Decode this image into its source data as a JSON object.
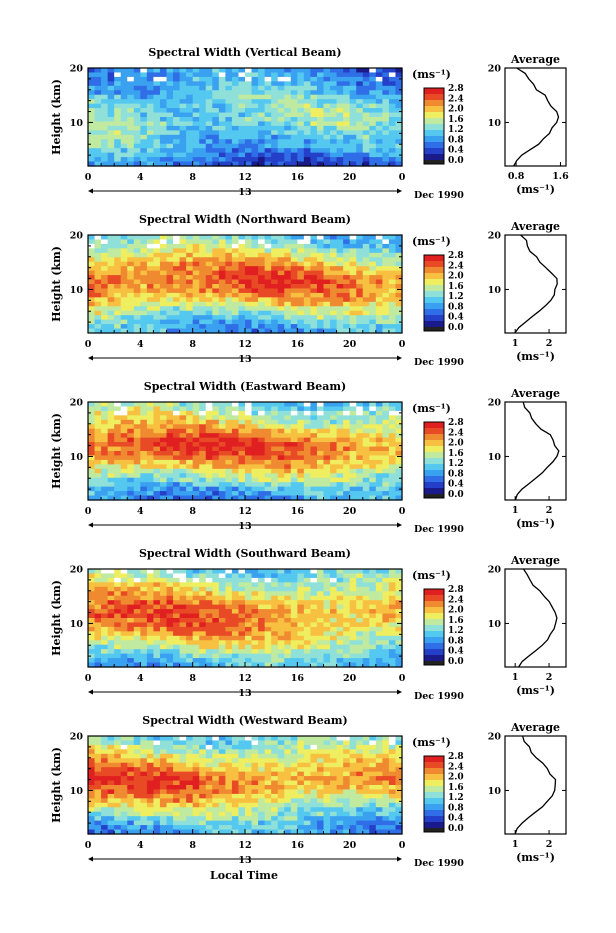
{
  "colormap": [
    "#1a1a8a",
    "#2540c8",
    "#2f6ee6",
    "#3aa0f0",
    "#55c8f0",
    "#8fe0d8",
    "#bfeaa0",
    "#eeee60",
    "#f8c040",
    "#f08a30",
    "#e84a26",
    "#e02020"
  ],
  "xlabel": "Local Time",
  "date_label": "Dec 1990",
  "day_label": "13",
  "x_ticks": [
    "0",
    "4",
    "8",
    "12",
    "16",
    "20",
    "0"
  ],
  "colorbar_unit": "(ms⁻¹)",
  "colorbar_ticks": [
    "2.8",
    "2.4",
    "2.0",
    "1.6",
    "1.2",
    "0.8",
    "0.4",
    "0.0"
  ],
  "ylabel": "Height (km)",
  "avg_title": "Average",
  "avg_unit": "(ms⁻¹)",
  "chart_data": [
    {
      "type": "heatmap",
      "title": "Spectral Width (Vertical Beam)",
      "xlabel": "Local Time",
      "ylabel": "Height (km)",
      "xlim": [
        0,
        24
      ],
      "ylim": [
        2,
        20
      ],
      "y_ticks": [
        "20",
        "10"
      ],
      "colorbar_range": [
        0.0,
        2.8
      ],
      "profile": {
        "heights": [
          2,
          4,
          6,
          8,
          10,
          12,
          14,
          16,
          18,
          20
        ],
        "values": [
          0.5,
          0.8,
          1.1,
          1.3,
          1.45,
          1.4,
          1.3,
          1.1,
          0.95,
          0.8
        ]
      },
      "average_profile": {
        "x_ticks": [
          "0.8",
          "1.6"
        ],
        "xlim": [
          0.6,
          1.7
        ],
        "y_ticks": [
          "20",
          "10"
        ],
        "heights": [
          2,
          3,
          4,
          5,
          6,
          7,
          8,
          9,
          10,
          11,
          12,
          13,
          14,
          15,
          16,
          17,
          18,
          19,
          20
        ],
        "values": [
          0.75,
          0.8,
          0.9,
          1.05,
          1.2,
          1.3,
          1.4,
          1.45,
          1.5,
          1.55,
          1.5,
          1.45,
          1.35,
          1.3,
          1.2,
          1.1,
          1.0,
          0.95,
          0.85
        ]
      }
    },
    {
      "type": "heatmap",
      "title": "Spectral Width (Northward Beam)",
      "xlabel": "Local Time",
      "ylabel": "Height (km)",
      "xlim": [
        0,
        24
      ],
      "ylim": [
        2,
        20
      ],
      "y_ticks": [
        "20",
        "10"
      ],
      "colorbar_range": [
        0.0,
        2.8
      ],
      "profile": {
        "heights": [
          2,
          4,
          6,
          8,
          10,
          12,
          14,
          16,
          18,
          20
        ],
        "values": [
          0.9,
          1.1,
          1.6,
          2.1,
          2.4,
          2.5,
          2.2,
          1.9,
          1.5,
          1.2
        ]
      },
      "average_profile": {
        "x_ticks": [
          "1",
          "2"
        ],
        "xlim": [
          0.7,
          2.5
        ],
        "y_ticks": [
          "20",
          "10"
        ],
        "heights": [
          2,
          3,
          4,
          5,
          6,
          7,
          8,
          9,
          10,
          11,
          12,
          13,
          14,
          15,
          16,
          17,
          18,
          19,
          20
        ],
        "values": [
          1.0,
          1.1,
          1.3,
          1.5,
          1.7,
          1.9,
          2.05,
          2.15,
          2.2,
          2.25,
          2.2,
          2.05,
          1.9,
          1.75,
          1.6,
          1.45,
          1.35,
          1.3,
          1.2
        ]
      }
    },
    {
      "type": "heatmap",
      "title": "Spectral Width (Eastward Beam)",
      "xlabel": "Local Time",
      "ylabel": "Height (km)",
      "xlim": [
        0,
        24
      ],
      "ylim": [
        2,
        20
      ],
      "y_ticks": [
        "20",
        "10"
      ],
      "colorbar_range": [
        0.0,
        2.8
      ],
      "profile": {
        "heights": [
          2,
          4,
          6,
          8,
          10,
          12,
          14,
          16,
          18,
          20
        ],
        "values": [
          0.8,
          1.0,
          1.5,
          2.0,
          2.4,
          2.6,
          2.3,
          1.9,
          1.6,
          1.3
        ]
      },
      "average_profile": {
        "x_ticks": [
          "1",
          "2"
        ],
        "xlim": [
          0.7,
          2.5
        ],
        "y_ticks": [
          "20",
          "10"
        ],
        "heights": [
          2,
          3,
          4,
          5,
          6,
          7,
          8,
          9,
          10,
          11,
          12,
          13,
          14,
          15,
          16,
          17,
          18,
          19,
          20
        ],
        "values": [
          1.0,
          1.05,
          1.2,
          1.4,
          1.6,
          1.8,
          1.95,
          2.1,
          2.2,
          2.25,
          2.2,
          2.1,
          2.0,
          1.8,
          1.6,
          1.5,
          1.4,
          1.3,
          1.2
        ]
      }
    },
    {
      "type": "heatmap",
      "title": "Spectral Width (Southward Beam)",
      "xlabel": "Local Time",
      "ylabel": "Height (km)",
      "xlim": [
        0,
        24
      ],
      "ylim": [
        2,
        20
      ],
      "y_ticks": [
        "20",
        "10"
      ],
      "colorbar_range": [
        0.0,
        2.8
      ],
      "profile": {
        "heights": [
          2,
          4,
          6,
          8,
          10,
          12,
          14,
          16,
          18,
          20
        ],
        "values": [
          1.0,
          1.2,
          1.7,
          2.1,
          2.3,
          2.4,
          2.2,
          1.9,
          1.6,
          1.3
        ]
      },
      "average_profile": {
        "x_ticks": [
          "1",
          "2"
        ],
        "xlim": [
          0.7,
          2.5
        ],
        "y_ticks": [
          "20",
          "10"
        ],
        "heights": [
          2,
          3,
          4,
          5,
          6,
          7,
          8,
          9,
          10,
          11,
          12,
          13,
          14,
          15,
          16,
          17,
          18,
          19,
          20
        ],
        "values": [
          1.1,
          1.2,
          1.4,
          1.6,
          1.8,
          1.95,
          2.05,
          2.15,
          2.2,
          2.25,
          2.2,
          2.1,
          2.0,
          1.85,
          1.7,
          1.55,
          1.45,
          1.35,
          1.25
        ]
      }
    },
    {
      "type": "heatmap",
      "title": "Spectral Width (Westward Beam)",
      "xlabel": "Local Time",
      "ylabel": "Height (km)",
      "xlim": [
        0,
        24
      ],
      "ylim": [
        2,
        20
      ],
      "y_ticks": [
        "20",
        "10"
      ],
      "colorbar_range": [
        0.0,
        2.8
      ],
      "profile": {
        "heights": [
          2,
          4,
          6,
          8,
          10,
          12,
          14,
          16,
          18,
          20
        ],
        "values": [
          0.9,
          1.0,
          1.5,
          1.9,
          2.3,
          2.5,
          2.2,
          1.9,
          1.6,
          1.3
        ]
      },
      "average_profile": {
        "x_ticks": [
          "1",
          "2"
        ],
        "xlim": [
          0.7,
          2.5
        ],
        "y_ticks": [
          "20",
          "10"
        ],
        "heights": [
          2,
          3,
          4,
          5,
          6,
          7,
          8,
          9,
          10,
          11,
          12,
          13,
          14,
          15,
          16,
          17,
          18,
          19,
          20
        ],
        "values": [
          1.0,
          1.05,
          1.2,
          1.4,
          1.6,
          1.8,
          1.95,
          2.1,
          2.2,
          2.2,
          2.15,
          2.05,
          1.95,
          1.8,
          1.6,
          1.5,
          1.4,
          1.3,
          1.2
        ]
      }
    }
  ]
}
